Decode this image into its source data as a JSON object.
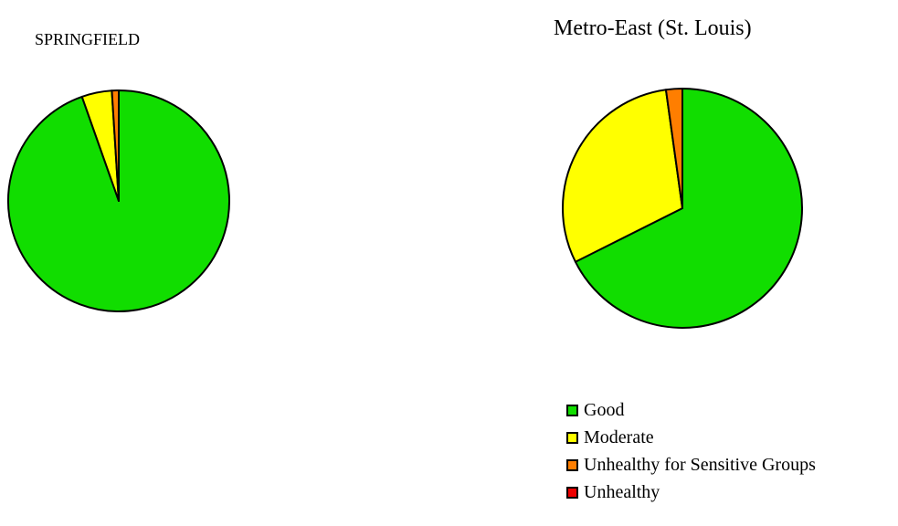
{
  "colors": {
    "good": "#11dd00",
    "moderate": "#ffff00",
    "usg": "#ff7e00",
    "unhealthy": "#ee0000"
  },
  "legend": {
    "items": [
      {
        "label": "Good",
        "color": "#11dd00"
      },
      {
        "label": "Moderate",
        "color": "#ffff00"
      },
      {
        "label": "Unhealthy for Sensitive Groups",
        "color": "#ff7e00"
      },
      {
        "label": "Unhealthy",
        "color": "#ee0000"
      }
    ]
  },
  "chart_data": [
    {
      "type": "pie",
      "title": "SPRINGFIELD",
      "categories": [
        "Good",
        "Moderate",
        "Unhealthy for Sensitive Groups",
        "Unhealthy"
      ],
      "values": [
        94.6,
        4.4,
        1.0,
        0.0
      ],
      "colors": [
        "#11dd00",
        "#ffff00",
        "#ff7e00",
        "#ee0000"
      ]
    },
    {
      "type": "pie",
      "title": "Metro-East (St. Louis)",
      "categories": [
        "Good",
        "Moderate",
        "Unhealthy for Sensitive Groups",
        "Unhealthy"
      ],
      "values": [
        67.6,
        30.2,
        2.2,
        0.0
      ],
      "colors": [
        "#11dd00",
        "#ffff00",
        "#ff7e00",
        "#ee0000"
      ]
    }
  ]
}
